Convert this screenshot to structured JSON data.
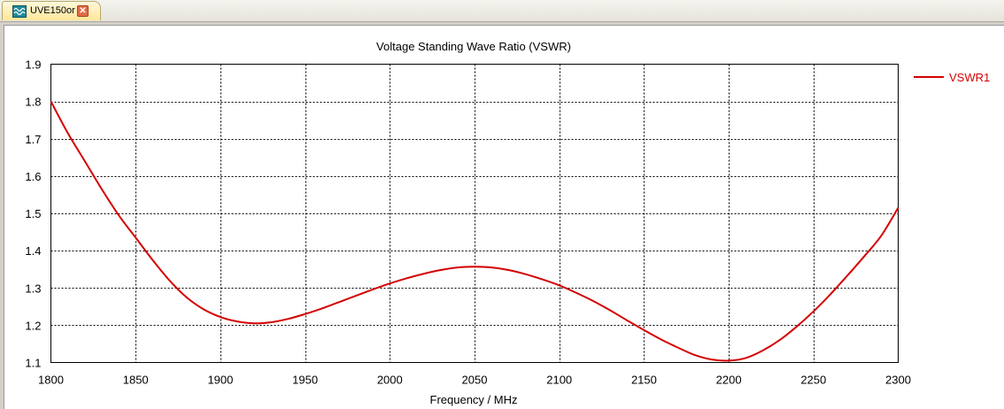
{
  "tab": {
    "title": "UVE150or",
    "icon": "waveform-icon",
    "close_icon": "close-icon",
    "close_glyph": "✕"
  },
  "colors": {
    "series": "#d40000",
    "grid": "#000000",
    "background": "#ffffff"
  },
  "chart_data": {
    "type": "line",
    "title": "Voltage Standing Wave Ratio (VSWR)",
    "xlabel": "Frequency / MHz",
    "ylabel": "",
    "xlim": [
      1800,
      2300
    ],
    "ylim": [
      1.1,
      1.9
    ],
    "xticks": [
      1800,
      1850,
      1900,
      1950,
      2000,
      2050,
      2100,
      2150,
      2200,
      2250,
      2300
    ],
    "yticks": [
      1.1,
      1.2,
      1.3,
      1.4,
      1.5,
      1.6,
      1.7,
      1.8,
      1.9
    ],
    "xtick_labels": [
      "1800",
      "1850",
      "1900",
      "1950",
      "2000",
      "2050",
      "2100",
      "2150",
      "2200",
      "2250",
      "2300"
    ],
    "ytick_labels": [
      "1.1",
      "1.2",
      "1.3",
      "1.4",
      "1.5",
      "1.6",
      "1.7",
      "1.8",
      "1.9"
    ],
    "grid": true,
    "legend": "right",
    "series": [
      {
        "name": "VSWR1",
        "x": [
          1800,
          1810,
          1820,
          1830,
          1840,
          1850,
          1860,
          1870,
          1880,
          1890,
          1900,
          1910,
          1920,
          1930,
          1940,
          1950,
          1960,
          1970,
          1980,
          1990,
          2000,
          2010,
          2020,
          2030,
          2040,
          2050,
          2060,
          2070,
          2080,
          2090,
          2100,
          2110,
          2120,
          2130,
          2140,
          2150,
          2160,
          2170,
          2180,
          2190,
          2200,
          2210,
          2220,
          2230,
          2240,
          2250,
          2260,
          2270,
          2280,
          2290,
          2300
        ],
        "values": [
          1.8,
          1.715,
          1.64,
          1.565,
          1.495,
          1.435,
          1.375,
          1.32,
          1.275,
          1.243,
          1.222,
          1.21,
          1.205,
          1.208,
          1.217,
          1.23,
          1.245,
          1.262,
          1.279,
          1.296,
          1.312,
          1.326,
          1.338,
          1.348,
          1.355,
          1.357,
          1.355,
          1.348,
          1.337,
          1.323,
          1.307,
          1.287,
          1.265,
          1.24,
          1.213,
          1.187,
          1.162,
          1.14,
          1.12,
          1.108,
          1.105,
          1.112,
          1.132,
          1.16,
          1.196,
          1.237,
          1.283,
          1.333,
          1.385,
          1.44,
          1.515
        ]
      }
    ]
  }
}
